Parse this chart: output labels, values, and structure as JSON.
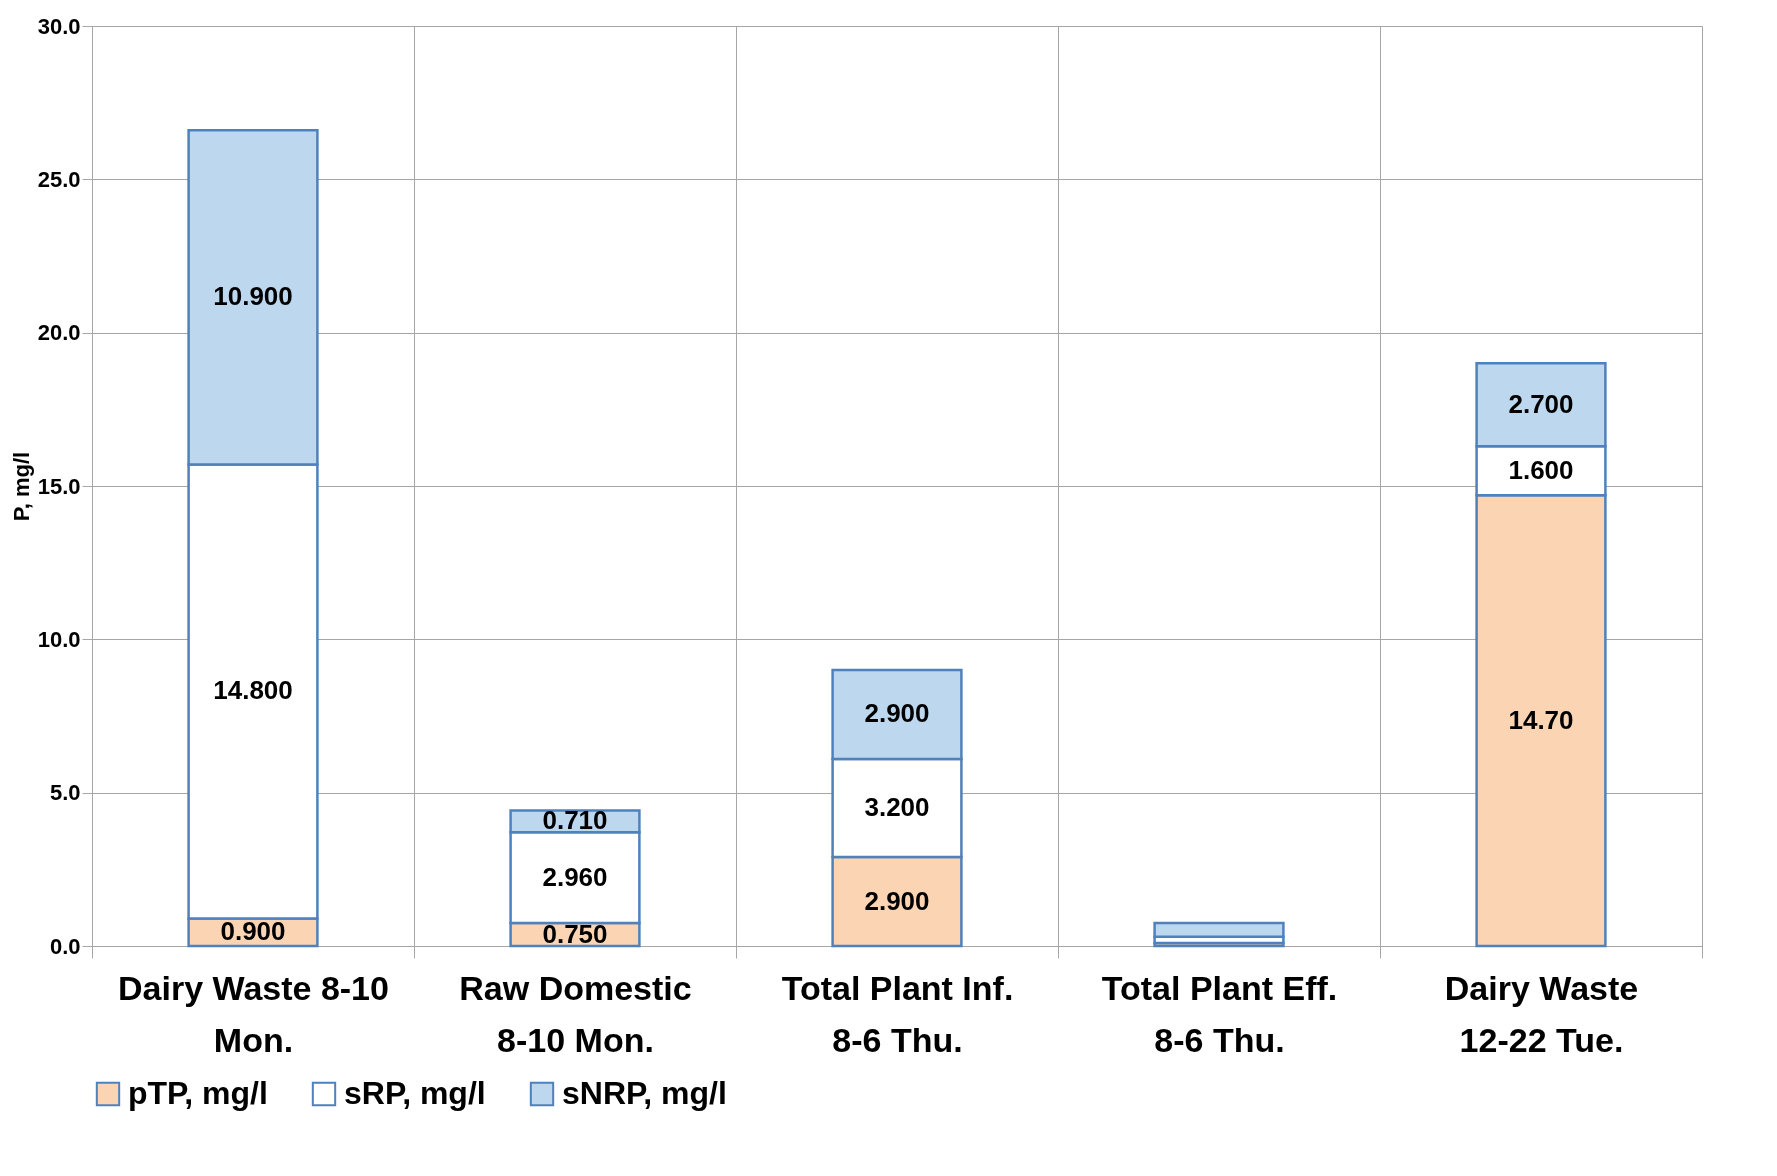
{
  "chart_data": {
    "type": "bar",
    "stacked": true,
    "ylabel": "P, mg/l",
    "categories": [
      "Dairy Waste 8-10  Mon.",
      "Raw Domestic 8-10  Mon.",
      "Total Plant Inf. 8-6  Thu.",
      "Total Plant Eff. 8-6  Thu.",
      "Dairy Waste 12-22  Tue."
    ],
    "series": [
      {
        "name": "pTP, mg/l",
        "color": "#fbd4b4",
        "values": [
          0.9,
          0.75,
          2.9,
          0.1,
          14.7
        ],
        "value_labels": [
          "0.900",
          "0.750",
          "2.900",
          null,
          "14.70"
        ]
      },
      {
        "name": "sRP, mg/l",
        "color": "#ffffff",
        "values": [
          14.8,
          2.96,
          3.2,
          0.2,
          1.6
        ],
        "value_labels": [
          "14.800",
          "2.960",
          "3.200",
          null,
          "1.600"
        ]
      },
      {
        "name": "sNRP, mg/l",
        "color": "#bdd7ee",
        "values": [
          10.9,
          0.71,
          2.9,
          0.45,
          2.7
        ],
        "value_labels": [
          "10.900",
          "0.710",
          "2.900",
          null,
          "2.700"
        ]
      }
    ],
    "ylim": [
      0,
      30
    ],
    "yticks": [
      {
        "value": 0,
        "label": "0.0"
      },
      {
        "value": 5,
        "label": "5.0"
      },
      {
        "value": 10,
        "label": "10.0"
      },
      {
        "value": 15,
        "label": "15.0"
      },
      {
        "value": 20,
        "label": "20.0"
      },
      {
        "value": 25,
        "label": "25.0"
      },
      {
        "value": 30,
        "label": "30.0"
      }
    ],
    "grid": true,
    "legend": "bottom"
  }
}
